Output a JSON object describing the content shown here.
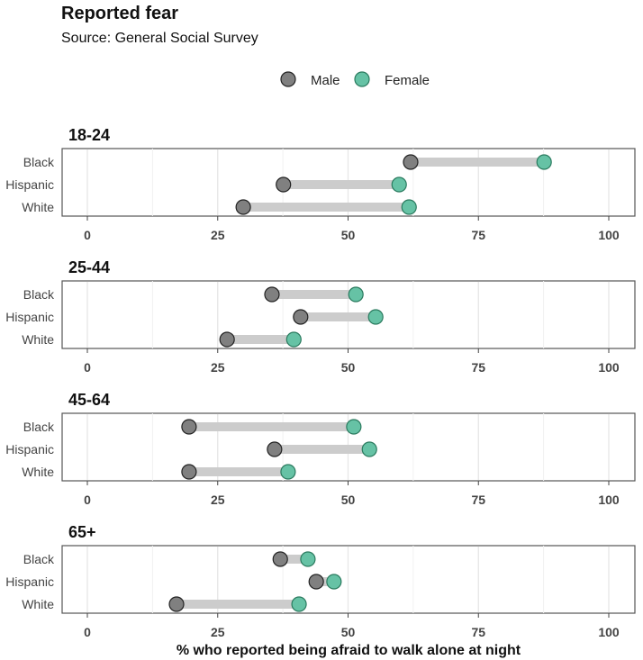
{
  "chart_data": {
    "type": "dumbbell",
    "title": "Reported fear",
    "subtitle": "Source: General Social Survey",
    "xlabel": "% who reported being afraid to walk alone at night",
    "xlim": [
      0,
      100
    ],
    "xticks": [
      "0",
      "25",
      "50",
      "75",
      "100"
    ],
    "legend": {
      "placement": "top",
      "entries": [
        {
          "name": "Male",
          "color": "#808080"
        },
        {
          "name": "Female",
          "color": "#66c2a5"
        }
      ]
    },
    "categories": [
      "Black",
      "Hispanic",
      "White"
    ],
    "panels": [
      {
        "label": "18-24",
        "male": [
          62.0,
          37.6,
          29.9
        ],
        "female": [
          87.6,
          59.8,
          61.7
        ]
      },
      {
        "label": "25-44",
        "male": [
          35.4,
          40.9,
          26.8
        ],
        "female": [
          51.5,
          55.3,
          39.6
        ]
      },
      {
        "label": "45-64",
        "male": [
          19.5,
          35.9,
          19.5
        ],
        "female": [
          51.1,
          54.1,
          38.5
        ]
      },
      {
        "label": "65+",
        "male": [
          37.0,
          43.9,
          17.1
        ],
        "female": [
          42.3,
          47.3,
          40.6
        ]
      }
    ]
  }
}
